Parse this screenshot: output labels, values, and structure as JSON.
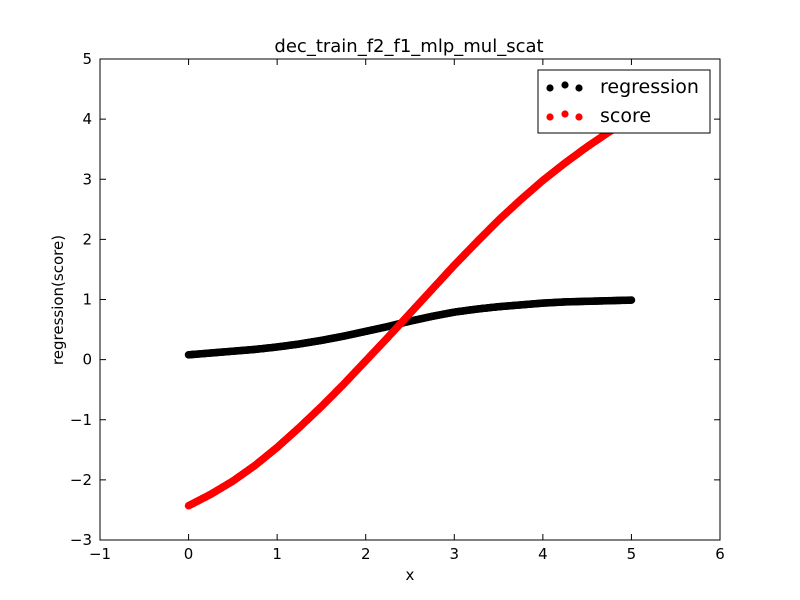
{
  "chart_data": {
    "type": "scatter",
    "title": "dec_train_f2_f1_mlp_mul_scat",
    "xlabel": "x",
    "ylabel": "regression(score)",
    "xlim": [
      -1,
      6
    ],
    "ylim": [
      -3,
      5
    ],
    "xticks": [
      -1,
      0,
      1,
      2,
      3,
      4,
      5,
      6
    ],
    "yticks": [
      -3,
      -2,
      -1,
      0,
      1,
      2,
      3,
      4,
      5
    ],
    "xtick_labels": [
      "−1",
      "0",
      "1",
      "2",
      "3",
      "4",
      "5",
      "6"
    ],
    "ytick_labels": [
      "−3",
      "−2",
      "−1",
      "0",
      "1",
      "2",
      "3",
      "4",
      "5"
    ],
    "grid": false,
    "legend_position": "top-right",
    "series": [
      {
        "name": "regression",
        "color": "#000000",
        "x": [
          0.0,
          0.25,
          0.5,
          0.75,
          1.0,
          1.25,
          1.5,
          1.75,
          2.0,
          2.25,
          2.5,
          2.75,
          3.0,
          3.25,
          3.5,
          3.75,
          4.0,
          4.25,
          4.5,
          4.75,
          5.0
        ],
        "y": [
          0.08,
          0.11,
          0.14,
          0.17,
          0.21,
          0.26,
          0.32,
          0.39,
          0.47,
          0.55,
          0.64,
          0.72,
          0.79,
          0.84,
          0.88,
          0.91,
          0.94,
          0.96,
          0.97,
          0.98,
          0.99
        ]
      },
      {
        "name": "score",
        "color": "#ff0000",
        "x": [
          0.0,
          0.25,
          0.5,
          0.75,
          1.0,
          1.25,
          1.5,
          1.75,
          2.0,
          2.25,
          2.5,
          2.75,
          3.0,
          3.25,
          3.5,
          3.75,
          4.0,
          4.25,
          4.5,
          4.75,
          5.0
        ],
        "y": [
          -2.43,
          -2.24,
          -2.02,
          -1.76,
          -1.46,
          -1.13,
          -0.78,
          -0.41,
          -0.02,
          0.37,
          0.77,
          1.17,
          1.57,
          1.95,
          2.32,
          2.66,
          2.98,
          3.27,
          3.54,
          3.79,
          4.0
        ]
      }
    ]
  }
}
